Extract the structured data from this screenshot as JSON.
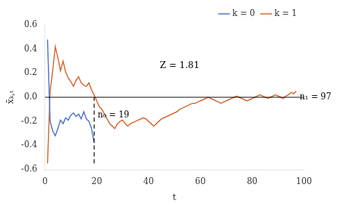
{
  "chart_data": {
    "type": "line",
    "x_label": "t",
    "y_label": "x̄ₖ,ₜ",
    "series": [
      {
        "name": "k = 0",
        "color": "#4472c4",
        "x": [
          1,
          2,
          3,
          4,
          5,
          6,
          7,
          8,
          9,
          10,
          11,
          12,
          13,
          14,
          15,
          16,
          17,
          18,
          19
        ],
        "values": [
          0.48,
          -0.2,
          -0.28,
          -0.32,
          -0.26,
          -0.19,
          -0.22,
          -0.17,
          -0.19,
          -0.15,
          -0.13,
          -0.16,
          -0.14,
          -0.18,
          -0.12,
          -0.18,
          -0.2,
          -0.26,
          -0.38
        ]
      },
      {
        "name": "k = 1",
        "color": "#d4622a",
        "x": [
          1,
          2,
          3,
          4,
          5,
          6,
          7,
          8,
          9,
          10,
          11,
          12,
          13,
          14,
          15,
          16,
          17,
          18,
          19,
          20,
          21,
          22,
          23,
          24,
          25,
          26,
          27,
          28,
          29,
          30,
          31,
          32,
          33,
          34,
          35,
          36,
          37,
          38,
          39,
          40,
          41,
          42,
          43,
          44,
          45,
          46,
          47,
          48,
          49,
          50,
          51,
          52,
          53,
          54,
          55,
          56,
          57,
          58,
          59,
          60,
          61,
          62,
          63,
          64,
          65,
          66,
          67,
          68,
          69,
          70,
          71,
          72,
          73,
          74,
          75,
          76,
          77,
          78,
          79,
          80,
          81,
          82,
          83,
          84,
          85,
          86,
          87,
          88,
          89,
          90,
          91,
          92,
          93,
          94,
          95,
          96,
          97
        ],
        "values": [
          -0.55,
          0.05,
          0.22,
          0.42,
          0.33,
          0.22,
          0.3,
          0.21,
          0.16,
          0.13,
          0.09,
          0.14,
          0.17,
          0.12,
          0.1,
          0.09,
          0.12,
          0.06,
          0.02,
          -0.03,
          -0.08,
          -0.1,
          -0.14,
          -0.18,
          -0.22,
          -0.24,
          -0.26,
          -0.22,
          -0.2,
          -0.19,
          -0.22,
          -0.24,
          -0.22,
          -0.21,
          -0.2,
          -0.19,
          -0.18,
          -0.17,
          -0.18,
          -0.2,
          -0.22,
          -0.24,
          -0.22,
          -0.2,
          -0.18,
          -0.17,
          -0.16,
          -0.15,
          -0.14,
          -0.13,
          -0.12,
          -0.1,
          -0.09,
          -0.08,
          -0.07,
          -0.06,
          -0.05,
          -0.05,
          -0.04,
          -0.03,
          -0.02,
          -0.01,
          0.0,
          -0.01,
          -0.02,
          -0.03,
          -0.04,
          -0.05,
          -0.04,
          -0.03,
          -0.02,
          -0.01,
          0.0,
          0.01,
          0.0,
          -0.01,
          -0.02,
          -0.03,
          -0.02,
          -0.01,
          0.0,
          0.01,
          0.02,
          0.01,
          0.0,
          -0.01,
          0.0,
          0.01,
          0.02,
          0.01,
          0.0,
          -0.01,
          0.01,
          0.02,
          0.04,
          0.03,
          0.05
        ]
      }
    ],
    "xlim": [
      0,
      100
    ],
    "xticks": [
      0,
      20,
      40,
      60,
      80,
      100
    ],
    "ylim": [
      -0.6,
      0.6
    ],
    "yticks": [
      -0.6,
      -0.4,
      -0.2,
      {
        "value": 0,
        "label": "0.0"
      },
      0.2,
      0.4,
      0.6
    ],
    "grid": false,
    "legend": "upper right",
    "hlines": [
      {
        "y": 0,
        "color": "black"
      }
    ],
    "vlines": [
      {
        "x": 19,
        "ymin": -0.55,
        "ymax": 0.0,
        "color": "black",
        "line_style": "dashed"
      }
    ],
    "annotations": [
      {
        "text": "n₀ = 19",
        "x": 19,
        "y": -0.15
      },
      {
        "text": "n₁ = 97",
        "x": 97,
        "y": 0
      },
      {
        "text": "Z = 1.81"
      }
    ]
  }
}
